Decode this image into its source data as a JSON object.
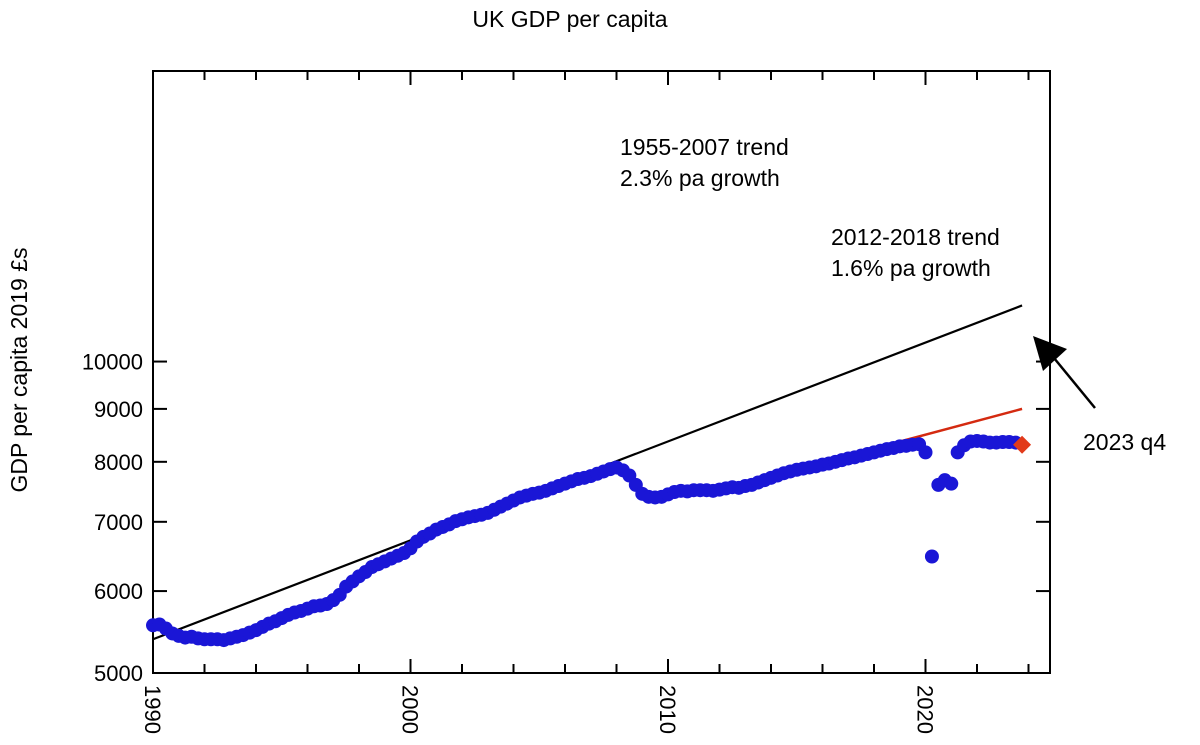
{
  "chart_data": {
    "type": "scatter",
    "title": "UK GDP per capita",
    "xlabel": "",
    "ylabel": "GDP per capita 2019 £s",
    "y_scale": "log",
    "xlim": [
      1990,
      2025
    ],
    "ylim": [
      5000,
      11500
    ],
    "grid": false,
    "x_ticks": [
      "1990",
      "2000",
      "2010",
      "2020"
    ],
    "y_ticks": [
      "5000",
      "6000",
      "7000",
      "8000",
      "9000",
      "10000"
    ],
    "point_color": "#1a16d6",
    "highlight_color": "#e23a1a",
    "trend_lines": [
      {
        "label_line1": "1955-2007 trend",
        "label_line2": "2.3% pa growth",
        "color": "#000000",
        "x": [
          1990.0,
          2023.75
        ],
        "y": [
          5390,
          11330
        ]
      },
      {
        "label_line1": "2012-2018 trend",
        "label_line2": "1.6% pa growth",
        "color": "#d42a10",
        "x": [
          2012.0,
          2023.75
        ],
        "y": [
          7520,
          9000
        ]
      }
    ],
    "highlight": {
      "label": "2023 q4",
      "x": 2023.75,
      "y": 8310
    },
    "series": [
      {
        "values": [
          [
            1990.0,
            5560
          ],
          [
            1990.25,
            5570
          ],
          [
            1990.5,
            5520
          ],
          [
            1990.75,
            5460
          ],
          [
            1991.0,
            5430
          ],
          [
            1991.25,
            5410
          ],
          [
            1991.5,
            5420
          ],
          [
            1991.75,
            5400
          ],
          [
            1992.0,
            5390
          ],
          [
            1992.25,
            5390
          ],
          [
            1992.5,
            5390
          ],
          [
            1992.75,
            5380
          ],
          [
            1993.0,
            5400
          ],
          [
            1993.25,
            5420
          ],
          [
            1993.5,
            5440
          ],
          [
            1993.75,
            5470
          ],
          [
            1994.0,
            5500
          ],
          [
            1994.25,
            5540
          ],
          [
            1994.5,
            5580
          ],
          [
            1994.75,
            5610
          ],
          [
            1995.0,
            5650
          ],
          [
            1995.25,
            5690
          ],
          [
            1995.5,
            5720
          ],
          [
            1995.75,
            5740
          ],
          [
            1996.0,
            5770
          ],
          [
            1996.25,
            5800
          ],
          [
            1996.5,
            5810
          ],
          [
            1996.75,
            5830
          ],
          [
            1997.0,
            5880
          ],
          [
            1997.25,
            5950
          ],
          [
            1997.5,
            6060
          ],
          [
            1997.75,
            6130
          ],
          [
            1998.0,
            6200
          ],
          [
            1998.25,
            6260
          ],
          [
            1998.5,
            6330
          ],
          [
            1998.75,
            6370
          ],
          [
            1999.0,
            6410
          ],
          [
            1999.25,
            6450
          ],
          [
            1999.5,
            6490
          ],
          [
            1999.75,
            6530
          ],
          [
            2000.0,
            6600
          ],
          [
            2000.25,
            6700
          ],
          [
            2000.5,
            6770
          ],
          [
            2000.75,
            6820
          ],
          [
            2001.0,
            6880
          ],
          [
            2001.25,
            6920
          ],
          [
            2001.5,
            6960
          ],
          [
            2001.75,
            7010
          ],
          [
            2002.0,
            7040
          ],
          [
            2002.25,
            7070
          ],
          [
            2002.5,
            7090
          ],
          [
            2002.75,
            7110
          ],
          [
            2003.0,
            7140
          ],
          [
            2003.25,
            7190
          ],
          [
            2003.5,
            7240
          ],
          [
            2003.75,
            7290
          ],
          [
            2004.0,
            7340
          ],
          [
            2004.25,
            7390
          ],
          [
            2004.5,
            7420
          ],
          [
            2004.75,
            7450
          ],
          [
            2005.0,
            7470
          ],
          [
            2005.25,
            7500
          ],
          [
            2005.5,
            7540
          ],
          [
            2005.75,
            7580
          ],
          [
            2006.0,
            7620
          ],
          [
            2006.25,
            7660
          ],
          [
            2006.5,
            7700
          ],
          [
            2006.75,
            7720
          ],
          [
            2007.0,
            7750
          ],
          [
            2007.25,
            7790
          ],
          [
            2007.5,
            7830
          ],
          [
            2007.75,
            7870
          ],
          [
            2008.0,
            7900
          ],
          [
            2008.25,
            7850
          ],
          [
            2008.5,
            7760
          ],
          [
            2008.75,
            7600
          ],
          [
            2009.0,
            7450
          ],
          [
            2009.25,
            7400
          ],
          [
            2009.5,
            7390
          ],
          [
            2009.75,
            7400
          ],
          [
            2010.0,
            7440
          ],
          [
            2010.25,
            7480
          ],
          [
            2010.5,
            7500
          ],
          [
            2010.75,
            7490
          ],
          [
            2011.0,
            7510
          ],
          [
            2011.25,
            7510
          ],
          [
            2011.5,
            7510
          ],
          [
            2011.75,
            7500
          ],
          [
            2012.0,
            7520
          ],
          [
            2012.25,
            7540
          ],
          [
            2012.5,
            7560
          ],
          [
            2012.75,
            7550
          ],
          [
            2013.0,
            7580
          ],
          [
            2013.25,
            7600
          ],
          [
            2013.5,
            7640
          ],
          [
            2013.75,
            7680
          ],
          [
            2014.0,
            7720
          ],
          [
            2014.25,
            7760
          ],
          [
            2014.5,
            7800
          ],
          [
            2014.75,
            7830
          ],
          [
            2015.0,
            7860
          ],
          [
            2015.25,
            7880
          ],
          [
            2015.5,
            7900
          ],
          [
            2015.75,
            7920
          ],
          [
            2016.0,
            7950
          ],
          [
            2016.25,
            7970
          ],
          [
            2016.5,
            8000
          ],
          [
            2016.75,
            8030
          ],
          [
            2017.0,
            8060
          ],
          [
            2017.25,
            8080
          ],
          [
            2017.5,
            8110
          ],
          [
            2017.75,
            8140
          ],
          [
            2018.0,
            8170
          ],
          [
            2018.25,
            8200
          ],
          [
            2018.5,
            8230
          ],
          [
            2018.75,
            8250
          ],
          [
            2019.0,
            8280
          ],
          [
            2019.25,
            8290
          ],
          [
            2019.5,
            8310
          ],
          [
            2019.75,
            8320
          ],
          [
            2020.0,
            8170
          ],
          [
            2020.25,
            6480
          ],
          [
            2020.5,
            7600
          ],
          [
            2020.75,
            7680
          ],
          [
            2021.0,
            7620
          ],
          [
            2021.25,
            8170
          ],
          [
            2021.5,
            8300
          ],
          [
            2021.75,
            8370
          ],
          [
            2022.0,
            8380
          ],
          [
            2022.25,
            8370
          ],
          [
            2022.5,
            8350
          ],
          [
            2022.75,
            8350
          ],
          [
            2023.0,
            8360
          ],
          [
            2023.25,
            8360
          ],
          [
            2023.5,
            8350
          ]
        ]
      }
    ]
  }
}
